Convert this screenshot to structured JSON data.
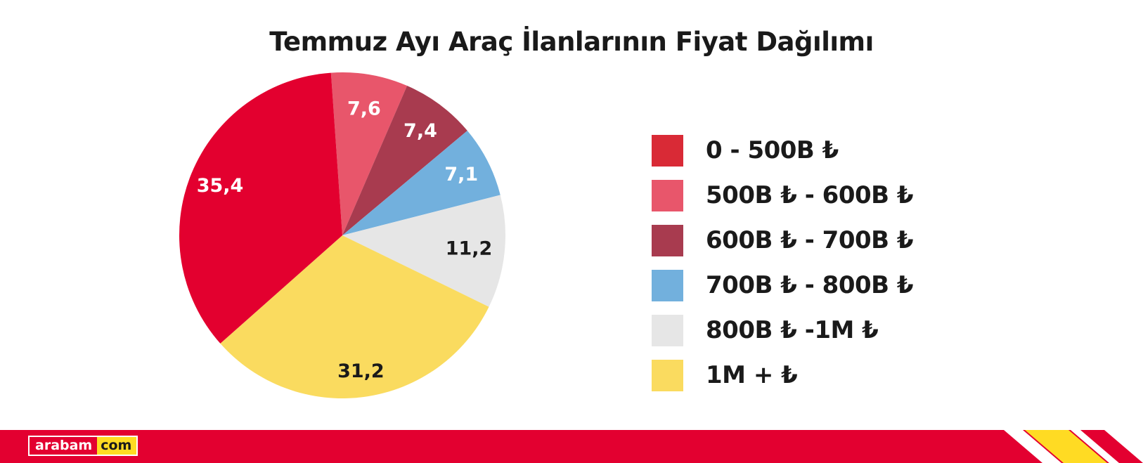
{
  "chart_data": {
    "type": "pie",
    "title": "Temmuz Ayı Araç İlanlarının Fiyat Dağılımı",
    "slices": [
      {
        "label": "0 - 500B ₺",
        "value": 35.4,
        "display": "35,4",
        "color": "#e3002f",
        "text_color": "#ffffff"
      },
      {
        "label": "500B ₺ - 600B ₺",
        "value": 7.6,
        "display": "7,6",
        "color": "#e8566b",
        "text_color": "#ffffff"
      },
      {
        "label": "600B ₺ - 700B ₺",
        "value": 7.4,
        "display": "7,4",
        "color": "#a83b4f",
        "text_color": "#ffffff"
      },
      {
        "label": "700B ₺ - 800B ₺",
        "value": 7.1,
        "display": "7,1",
        "color": "#72b0dd",
        "text_color": "#ffffff"
      },
      {
        "label": "800B ₺ -1M ₺",
        "value": 11.2,
        "display": "11,2",
        "color": "#e6e6e6",
        "text_color": "#1a1a1a"
      },
      {
        "label": "1M + ₺",
        "value": 31.2,
        "display": "31,2",
        "color": "#fadb5f",
        "text_color": "#1a1a1a"
      }
    ],
    "legend_position": "right"
  },
  "legend": {
    "swatch_colors": [
      "#d92a36",
      "#e8566b",
      "#a83b4f",
      "#72b0dd",
      "#e6e6e6",
      "#fadb5f"
    ]
  },
  "footer": {
    "logo_left": "arabam",
    "logo_right": "com",
    "bar_color": "#e30030",
    "stripe_color": "#ffdb23"
  }
}
